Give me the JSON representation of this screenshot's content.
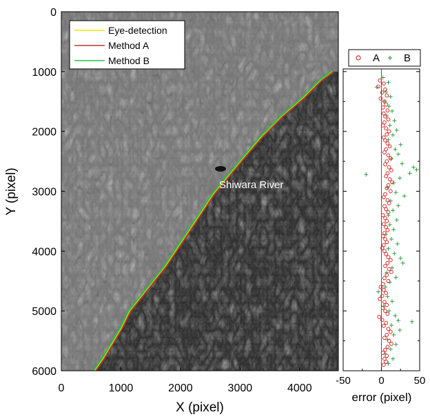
{
  "chart_data": [
    {
      "type": "line",
      "xlabel": "X (pixel)",
      "ylabel": "Y (pixel)",
      "xlim": [
        0,
        4650
      ],
      "ylim": [
        0,
        6000
      ],
      "y_inverted": true,
      "grid": false,
      "background": "grayscale SAR image",
      "x_ticks": [
        "0",
        "1000",
        "2000",
        "3000",
        "4000"
      ],
      "y_ticks": [
        "0",
        "1000",
        "2000",
        "3000",
        "4000",
        "5000",
        "6000"
      ],
      "legend_position": "top-left",
      "annotation": "Shiwara River",
      "series": [
        {
          "name": "Eye-detection",
          "color": "#f2e600",
          "x": [
            4550,
            4350,
            4050,
            3700,
            3350,
            3050,
            2800,
            2550,
            2350,
            2150,
            1950,
            1750,
            1550,
            1350,
            1150,
            1000,
            850,
            700,
            560
          ],
          "y": [
            1000,
            1150,
            1450,
            1750,
            2100,
            2450,
            2750,
            3050,
            3350,
            3650,
            3950,
            4250,
            4500,
            4750,
            5000,
            5300,
            5550,
            5800,
            6000
          ]
        },
        {
          "name": "Method A",
          "color": "#b5362a",
          "x": [
            4550,
            4350,
            4050,
            3700,
            3350,
            3050,
            2800,
            2550,
            2350,
            2150,
            1950,
            1750,
            1550,
            1350,
            1150,
            1000,
            850,
            700,
            560
          ],
          "y": [
            1000,
            1150,
            1450,
            1750,
            2100,
            2450,
            2750,
            3050,
            3350,
            3650,
            3950,
            4250,
            4500,
            4750,
            5000,
            5300,
            5550,
            5800,
            6000
          ]
        },
        {
          "name": "Method B",
          "color": "#22c24a",
          "x": [
            4550,
            4350,
            4050,
            3700,
            3350,
            3050,
            2800,
            2550,
            2350,
            2150,
            1950,
            1750,
            1550,
            1350,
            1150,
            1000,
            850,
            700,
            560
          ],
          "y": [
            1000,
            1150,
            1450,
            1750,
            2100,
            2450,
            2750,
            3050,
            3350,
            3650,
            3950,
            4250,
            4500,
            4750,
            5000,
            5300,
            5550,
            5800,
            6000
          ]
        }
      ]
    },
    {
      "type": "scatter",
      "xlabel": "error (pixel)",
      "xlim": [
        -50,
        50
      ],
      "ylim": [
        1000,
        6000
      ],
      "y_inverted": true,
      "x_ticks": [
        "-50",
        "0",
        "50"
      ],
      "legend_position": "top",
      "series": [
        {
          "name": "A",
          "color": "#d92b2b",
          "marker": "circle",
          "points": [
            [
              -2,
              1150
            ],
            [
              3,
              1200
            ],
            [
              -4,
              1250
            ],
            [
              5,
              1300
            ],
            [
              1,
              1350
            ],
            [
              7,
              1400
            ],
            [
              -1,
              1450
            ],
            [
              4,
              1500
            ],
            [
              6,
              1550
            ],
            [
              2,
              1600
            ],
            [
              8,
              1650
            ],
            [
              3,
              1700
            ],
            [
              5,
              1750
            ],
            [
              9,
              1800
            ],
            [
              4,
              1850
            ],
            [
              2,
              1900
            ],
            [
              6,
              1950
            ],
            [
              10,
              2000
            ],
            [
              7,
              2050
            ],
            [
              3,
              2100
            ],
            [
              5,
              2150
            ],
            [
              8,
              2200
            ],
            [
              11,
              2250
            ],
            [
              6,
              2300
            ],
            [
              4,
              2350
            ],
            [
              9,
              2400
            ],
            [
              12,
              2450
            ],
            [
              7,
              2500
            ],
            [
              5,
              2550
            ],
            [
              10,
              2600
            ],
            [
              13,
              2650
            ],
            [
              8,
              2700
            ],
            [
              6,
              2750
            ],
            [
              11,
              2800
            ],
            [
              14,
              2850
            ],
            [
              9,
              2900
            ],
            [
              7,
              2950
            ],
            [
              12,
              3000
            ],
            [
              5,
              3050
            ],
            [
              3,
              3100
            ],
            [
              8,
              3150
            ],
            [
              10,
              3200
            ],
            [
              4,
              3250
            ],
            [
              6,
              3300
            ],
            [
              9,
              3350
            ],
            [
              2,
              3400
            ],
            [
              5,
              3450
            ],
            [
              7,
              3500
            ],
            [
              3,
              3550
            ],
            [
              6,
              3600
            ],
            [
              8,
              3650
            ],
            [
              4,
              3700
            ],
            [
              2,
              3750
            ],
            [
              5,
              3800
            ],
            [
              7,
              3850
            ],
            [
              3,
              3900
            ],
            [
              1,
              3950
            ],
            [
              4,
              4000
            ],
            [
              6,
              4050
            ],
            [
              9,
              4100
            ],
            [
              12,
              4150
            ],
            [
              8,
              4200
            ],
            [
              5,
              4250
            ],
            [
              10,
              4300
            ],
            [
              13,
              4350
            ],
            [
              7,
              4400
            ],
            [
              4,
              4450
            ],
            [
              9,
              4500
            ],
            [
              2,
              4550
            ],
            [
              -1,
              4600
            ],
            [
              3,
              4650
            ],
            [
              6,
              4700
            ],
            [
              1,
              4750
            ],
            [
              -2,
              4800
            ],
            [
              4,
              4850
            ],
            [
              7,
              4900
            ],
            [
              2,
              4950
            ],
            [
              5,
              5000
            ],
            [
              8,
              5050
            ],
            [
              -3,
              5100
            ],
            [
              1,
              5150
            ],
            [
              6,
              5200
            ],
            [
              3,
              5250
            ],
            [
              9,
              5300
            ],
            [
              12,
              5350
            ],
            [
              7,
              5400
            ],
            [
              4,
              5450
            ],
            [
              10,
              5500
            ],
            [
              13,
              5550
            ],
            [
              8,
              5600
            ],
            [
              5,
              5650
            ],
            [
              2,
              5700
            ],
            [
              7,
              5750
            ],
            [
              4,
              5800
            ],
            [
              6,
              5850
            ],
            [
              3,
              5900
            ]
          ]
        },
        {
          "name": "B",
          "color": "#2f9e3f",
          "marker": "plus",
          "points": [
            [
              2,
              1100
            ],
            [
              9,
              1180
            ],
            [
              -6,
              1260
            ],
            [
              6,
              1340
            ],
            [
              12,
              1420
            ],
            [
              4,
              1500
            ],
            [
              10,
              1580
            ],
            [
              14,
              1660
            ],
            [
              7,
              1740
            ],
            [
              17,
              1820
            ],
            [
              11,
              1900
            ],
            [
              20,
              1980
            ],
            [
              15,
              2060
            ],
            [
              9,
              2140
            ],
            [
              25,
              2220
            ],
            [
              18,
              2300
            ],
            [
              22,
              2380
            ],
            [
              13,
              2460
            ],
            [
              27,
              2540
            ],
            [
              42,
              2600
            ],
            [
              46,
              2640
            ],
            [
              37,
              2700
            ],
            [
              -20,
              2720
            ],
            [
              24,
              2780
            ],
            [
              16,
              2860
            ],
            [
              8,
              2940
            ],
            [
              19,
              3020
            ],
            [
              30,
              3080
            ],
            [
              12,
              3160
            ],
            [
              22,
              3240
            ],
            [
              15,
              3320
            ],
            [
              9,
              3400
            ],
            [
              20,
              3480
            ],
            [
              11,
              3560
            ],
            [
              16,
              3640
            ],
            [
              6,
              3720
            ],
            [
              13,
              3800
            ],
            [
              21,
              3880
            ],
            [
              9,
              3960
            ],
            [
              17,
              4040
            ],
            [
              25,
              4120
            ],
            [
              28,
              4200
            ],
            [
              14,
              4280
            ],
            [
              7,
              4360
            ],
            [
              19,
              4440
            ],
            [
              11,
              4520
            ],
            [
              5,
              4600
            ],
            [
              -4,
              4680
            ],
            [
              8,
              4760
            ],
            [
              14,
              4840
            ],
            [
              3,
              4920
            ],
            [
              10,
              5000
            ],
            [
              18,
              5080
            ],
            [
              22,
              5160
            ],
            [
              40,
              5180
            ],
            [
              13,
              5240
            ],
            [
              24,
              5320
            ],
            [
              16,
              5400
            ],
            [
              8,
              5480
            ],
            [
              19,
              5560
            ],
            [
              12,
              5640
            ],
            [
              5,
              5720
            ],
            [
              15,
              5800
            ],
            [
              9,
              5880
            ]
          ]
        }
      ]
    }
  ]
}
